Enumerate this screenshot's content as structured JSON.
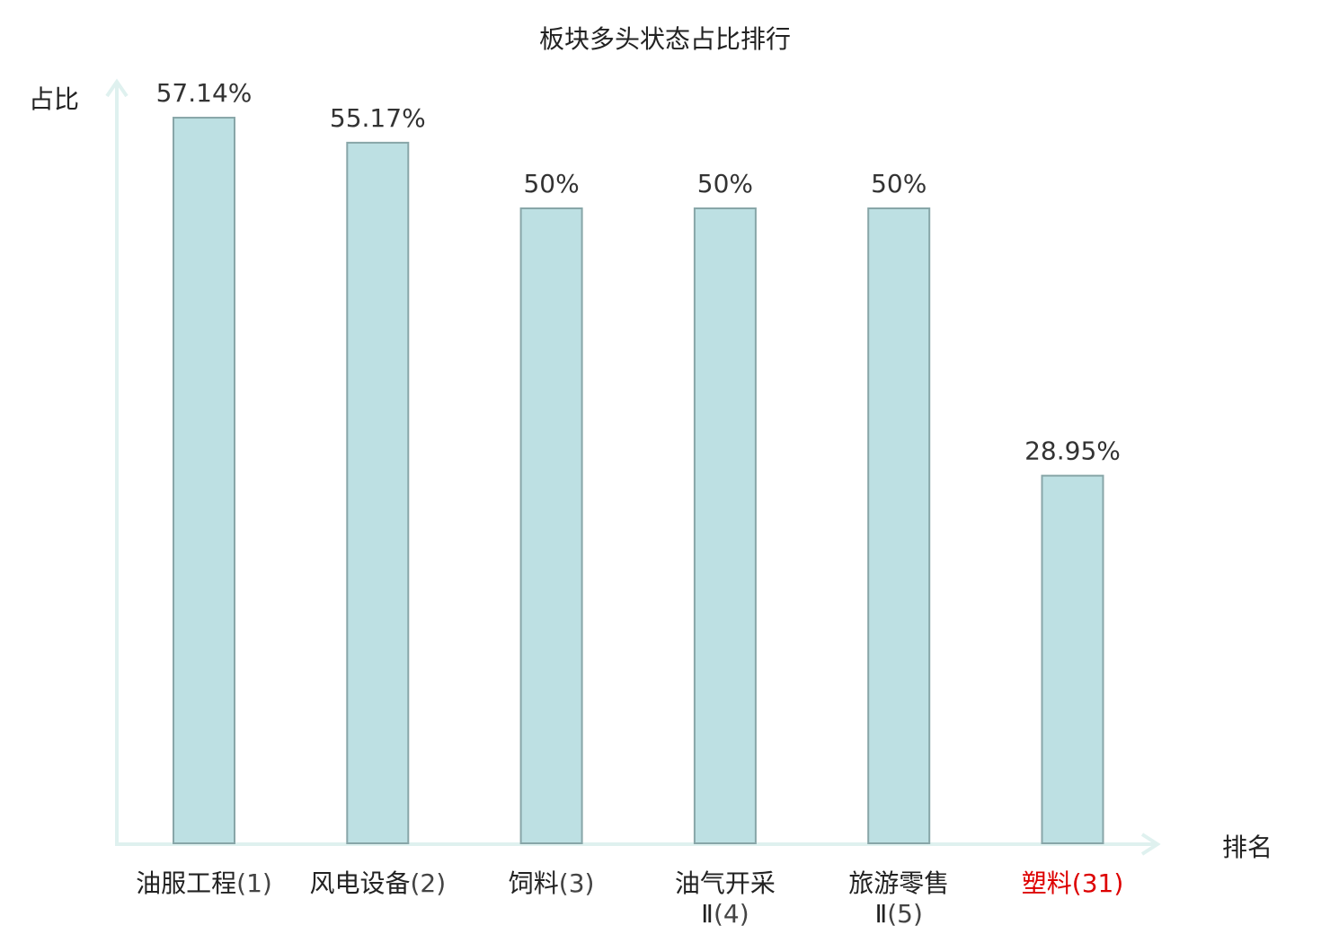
{
  "chart_data": {
    "type": "bar",
    "title": "板块多头状态占比排行",
    "ylabel": "占比",
    "xlabel": "排名",
    "ylim": [
      0,
      60
    ],
    "grid": false,
    "categories": [
      {
        "name": [
          "油服工程"
        ],
        "rank": "(1)",
        "highlight": false
      },
      {
        "name": [
          "风电设备"
        ],
        "rank": "(2)",
        "highlight": false
      },
      {
        "name": [
          "饲料"
        ],
        "rank": "(3)",
        "highlight": false
      },
      {
        "name": [
          "油气开采",
          "Ⅱ"
        ],
        "rank": "(4)",
        "highlight": false
      },
      {
        "name": [
          "旅游零售",
          "Ⅱ"
        ],
        "rank": "(5)",
        "highlight": false
      },
      {
        "name": [
          "塑料"
        ],
        "rank": "(31)",
        "highlight": true
      }
    ],
    "values": [
      57.14,
      55.17,
      50,
      50,
      50,
      28.95
    ],
    "value_labels": [
      "57.14%",
      "55.17%",
      "50%",
      "50%",
      "50%",
      "28.95%"
    ]
  },
  "colors": {
    "bar_fill": "#bde0e3",
    "bar_stroke": "#88a6a8",
    "axis": "#dff1ef",
    "highlight_text": "#dd0000"
  }
}
